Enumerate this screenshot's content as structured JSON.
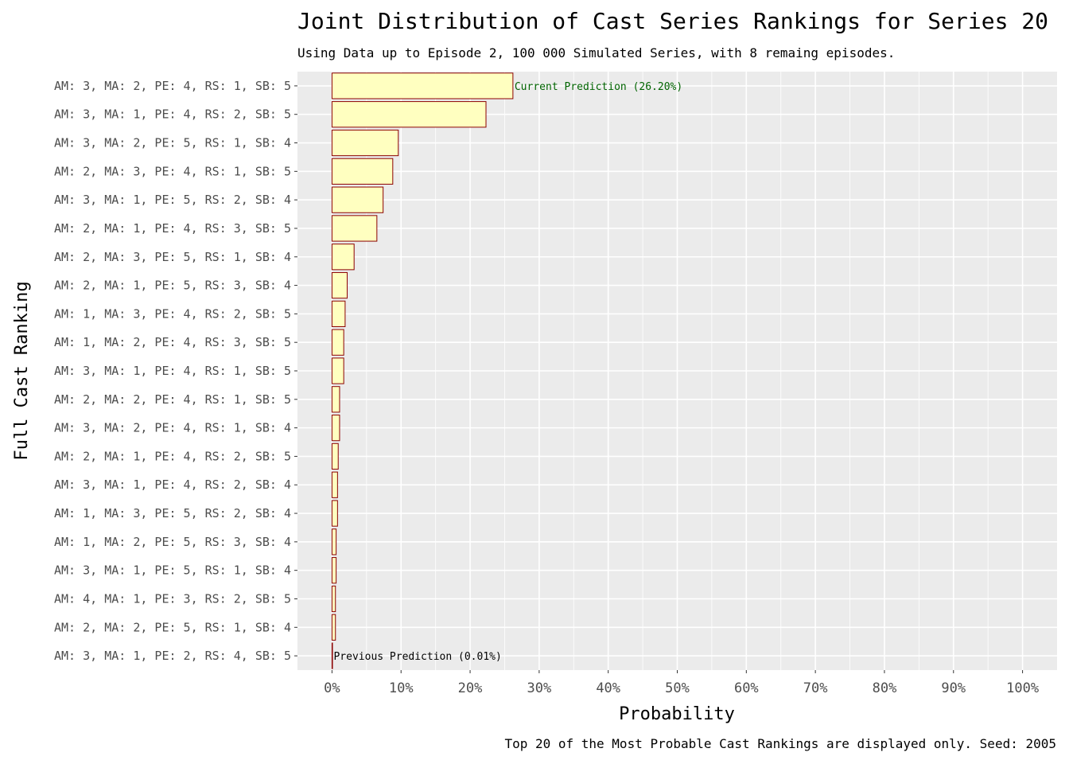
{
  "chart_data": {
    "type": "bar",
    "orientation": "horizontal",
    "title": "Joint Distribution of Cast Series Rankings for Series 20",
    "subtitle": "Using Data up to Episode 2, 100 000 Simulated Series, with 8 remaing episodes.",
    "xlabel": "Probability",
    "ylabel": "Full Cast Ranking",
    "caption": "Top 20 of the Most Probable Cast Rankings are displayed only. Seed: 2005",
    "xlim": [
      -5,
      105
    ],
    "x_ticks": [
      "0%",
      "10%",
      "20%",
      "30%",
      "40%",
      "50%",
      "60%",
      "70%",
      "80%",
      "90%",
      "100%"
    ],
    "x_tick_values": [
      0,
      10,
      20,
      30,
      40,
      50,
      60,
      70,
      80,
      90,
      100
    ],
    "grid": true,
    "legend": "none",
    "categories": [
      "AM: 3, MA: 2, PE: 4, RS: 1, SB: 5",
      "AM: 3, MA: 1, PE: 4, RS: 2, SB: 5",
      "AM: 3, MA: 2, PE: 5, RS: 1, SB: 4",
      "AM: 2, MA: 3, PE: 4, RS: 1, SB: 5",
      "AM: 3, MA: 1, PE: 5, RS: 2, SB: 4",
      "AM: 2, MA: 1, PE: 4, RS: 3, SB: 5",
      "AM: 2, MA: 3, PE: 5, RS: 1, SB: 4",
      "AM: 2, MA: 1, PE: 5, RS: 3, SB: 4",
      "AM: 1, MA: 3, PE: 4, RS: 2, SB: 5",
      "AM: 1, MA: 2, PE: 4, RS: 3, SB: 5",
      "AM: 3, MA: 1, PE: 4, RS: 1, SB: 5",
      "AM: 2, MA: 2, PE: 4, RS: 1, SB: 5",
      "AM: 3, MA: 2, PE: 4, RS: 1, SB: 4",
      "AM: 2, MA: 1, PE: 4, RS: 2, SB: 5",
      "AM: 3, MA: 1, PE: 4, RS: 2, SB: 4",
      "AM: 1, MA: 3, PE: 5, RS: 2, SB: 4",
      "AM: 1, MA: 2, PE: 5, RS: 3, SB: 4",
      "AM: 3, MA: 1, PE: 5, RS: 1, SB: 4",
      "AM: 4, MA: 1, PE: 3, RS: 2, SB: 5",
      "AM: 2, MA: 2, PE: 5, RS: 1, SB: 4",
      "AM: 3, MA: 1, PE: 2, RS: 4, SB: 5"
    ],
    "values": [
      26.2,
      22.3,
      9.6,
      8.8,
      7.4,
      6.5,
      3.2,
      2.2,
      1.9,
      1.7,
      1.7,
      1.1,
      1.1,
      0.9,
      0.8,
      0.8,
      0.6,
      0.6,
      0.5,
      0.5,
      0.01
    ],
    "annotations": [
      {
        "index": 0,
        "text": "Current Prediction (26.20%)",
        "color": "#006400"
      },
      {
        "index": 20,
        "text": "Previous Prediction (0.01%)",
        "color": "#000000"
      }
    ],
    "colors": {
      "bar_fill": "#FFFFC0",
      "bar_stroke": "#8B0000",
      "panel_bg": "#EBEBEB",
      "grid": "#FFFFFF"
    }
  }
}
